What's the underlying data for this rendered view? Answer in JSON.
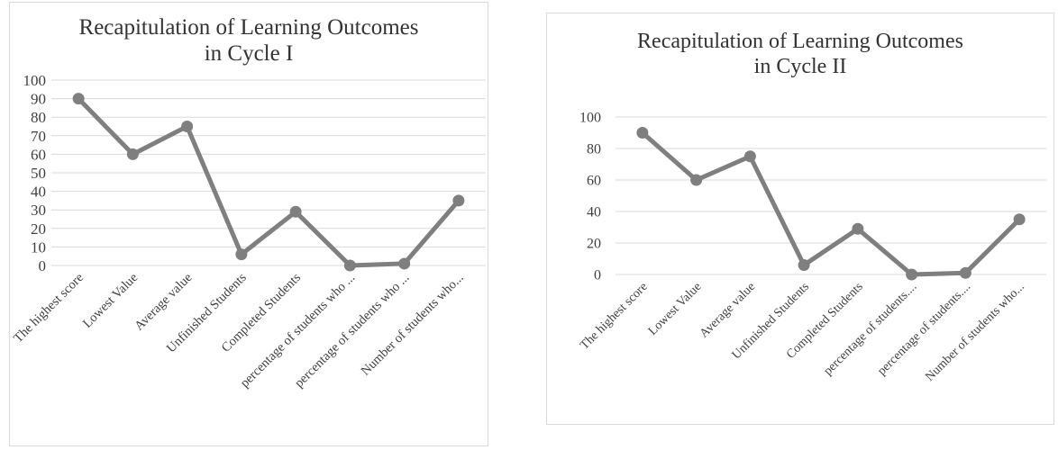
{
  "chart_data": [
    {
      "type": "line",
      "title": [
        "Recapitulation of Learning Outcomes",
        "in Cycle I"
      ],
      "categories": [
        "The highest score",
        "Lowest Value",
        "Average value",
        "Unfinished Students",
        "Completed Students",
        "percentage of students who ...",
        "percentage of students who ...",
        "Number of students who..."
      ],
      "values": [
        90,
        60,
        75,
        6,
        29,
        0,
        1,
        35
      ],
      "ylim": [
        0,
        100
      ],
      "yticks": [
        0,
        10,
        20,
        30,
        40,
        50,
        60,
        70,
        80,
        90,
        100
      ],
      "grid": true,
      "legend": "none",
      "color": "#7f7f7f"
    },
    {
      "type": "line",
      "title": [
        "Recapitulation of Learning Outcomes",
        "in Cycle II"
      ],
      "categories": [
        "The highest score",
        "Lowest Value",
        "Average value",
        "Unfinished Students",
        "Completed Students",
        "percentage of students....",
        "percentage of students....",
        "Number of students who..."
      ],
      "values": [
        90,
        60,
        75,
        6,
        29,
        0,
        1,
        35
      ],
      "ylim": [
        0,
        100
      ],
      "yticks": [
        0,
        20,
        40,
        60,
        80,
        100
      ],
      "grid": true,
      "legend": "none",
      "color": "#7f7f7f"
    }
  ]
}
